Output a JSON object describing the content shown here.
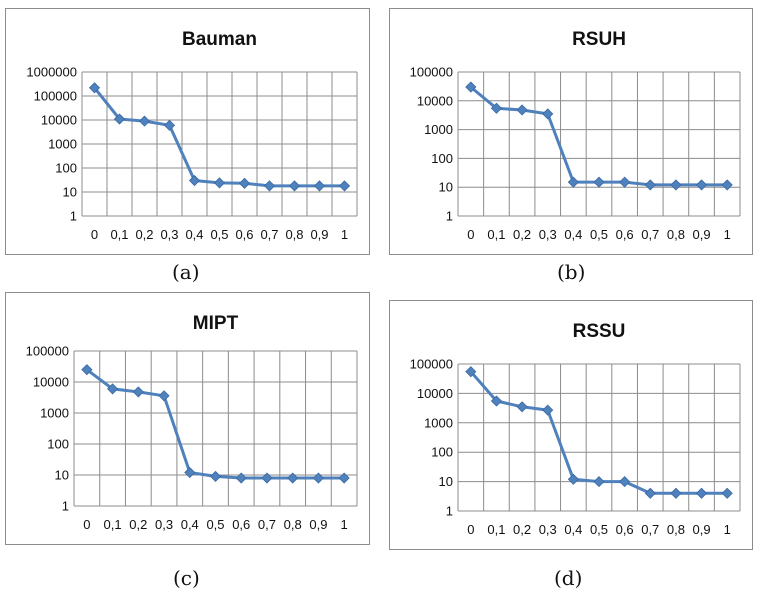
{
  "chart_data": [
    {
      "type": "line",
      "title": "Bauman",
      "caption": "(a)",
      "scale": "log",
      "ylim": [
        1,
        1000000
      ],
      "y_ticks": [
        "1",
        "10",
        "100",
        "1000",
        "10000",
        "100000",
        "1000000"
      ],
      "categories": [
        "0",
        "0,1",
        "0,2",
        "0,3",
        "0,4",
        "0,5",
        "0,6",
        "0,7",
        "0,8",
        "0,9",
        "1"
      ],
      "values": [
        220000,
        11000,
        9000,
        6000,
        30,
        24,
        23,
        18,
        18,
        18,
        18
      ],
      "grid": true,
      "color": "#4f81bd"
    },
    {
      "type": "line",
      "title": "RSUH",
      "caption": "(b)",
      "scale": "log",
      "ylim": [
        1,
        100000
      ],
      "y_ticks": [
        "1",
        "10",
        "100",
        "1000",
        "10000",
        "100000"
      ],
      "categories": [
        "0",
        "0,1",
        "0,2",
        "0,3",
        "0,4",
        "0,5",
        "0,6",
        "0,7",
        "0,8",
        "0,9",
        "1"
      ],
      "values": [
        30000,
        5500,
        4800,
        3500,
        15,
        15,
        15,
        12,
        12,
        12,
        12
      ],
      "grid": true,
      "color": "#4f81bd"
    },
    {
      "type": "line",
      "title": "MIPT",
      "caption": "(c)",
      "scale": "log",
      "ylim": [
        1,
        100000
      ],
      "y_ticks": [
        "1",
        "10",
        "100",
        "1000",
        "10000",
        "100000"
      ],
      "categories": [
        "0",
        "0,1",
        "0,2",
        "0,3",
        "0,4",
        "0,5",
        "0,6",
        "0,7",
        "0,8",
        "0,9",
        "1"
      ],
      "values": [
        25000,
        6000,
        4800,
        3600,
        12,
        9,
        8,
        8,
        8,
        8,
        8
      ],
      "grid": true,
      "color": "#4f81bd"
    },
    {
      "type": "line",
      "title": "RSSU",
      "caption": "(d)",
      "scale": "log",
      "ylim": [
        1,
        100000
      ],
      "y_ticks": [
        "1",
        "10",
        "100",
        "1000",
        "10000",
        "100000"
      ],
      "categories": [
        "0",
        "0,1",
        "0,2",
        "0,3",
        "0,4",
        "0,5",
        "0,6",
        "0,7",
        "0,8",
        "0,9",
        "1"
      ],
      "values": [
        55000,
        5500,
        3500,
        2700,
        12,
        10,
        10,
        4,
        4,
        4,
        4
      ],
      "grid": true,
      "color": "#4f81bd"
    }
  ]
}
